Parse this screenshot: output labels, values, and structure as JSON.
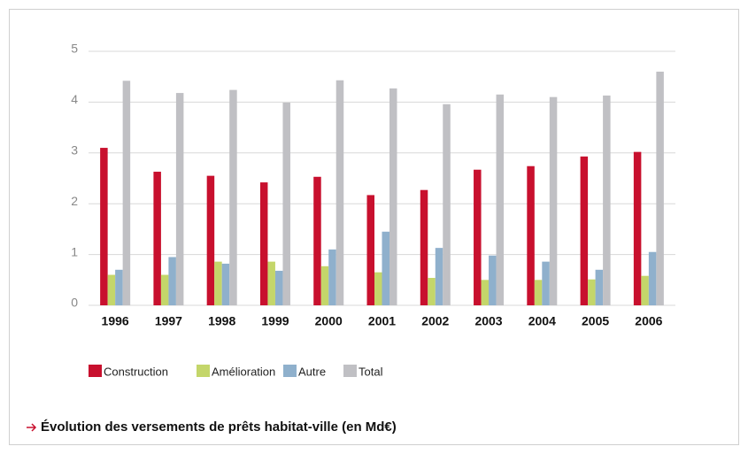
{
  "chart_data": {
    "type": "bar",
    "title": "Évolution des versements de prêts habitat-ville (en Md€)",
    "categories": [
      "1996",
      "1997",
      "1998",
      "1999",
      "2000",
      "2001",
      "2002",
      "2003",
      "2004",
      "2005",
      "2006"
    ],
    "series": [
      {
        "name": "Construction",
        "color": "#c8102e",
        "values": [
          3.1,
          2.63,
          2.55,
          2.42,
          2.53,
          2.17,
          2.27,
          2.67,
          2.74,
          2.93,
          3.02
        ]
      },
      {
        "name": "Amélioration",
        "color": "#c4d66a",
        "values": [
          0.6,
          0.6,
          0.86,
          0.86,
          0.77,
          0.65,
          0.54,
          0.5,
          0.5,
          0.51,
          0.58
        ]
      },
      {
        "name": "Autre",
        "color": "#8fb0cc",
        "values": [
          0.7,
          0.95,
          0.82,
          0.68,
          1.1,
          1.45,
          1.13,
          0.98,
          0.86,
          0.7,
          1.05
        ]
      },
      {
        "name": "Total",
        "color": "#c0c0c4",
        "values": [
          4.42,
          4.18,
          4.24,
          3.99,
          4.43,
          4.27,
          3.96,
          4.15,
          4.1,
          4.13,
          4.6
        ]
      }
    ],
    "ylim": [
      0,
      5
    ],
    "yticks": [
      0,
      1,
      2,
      3,
      4,
      5
    ],
    "grid": true
  }
}
